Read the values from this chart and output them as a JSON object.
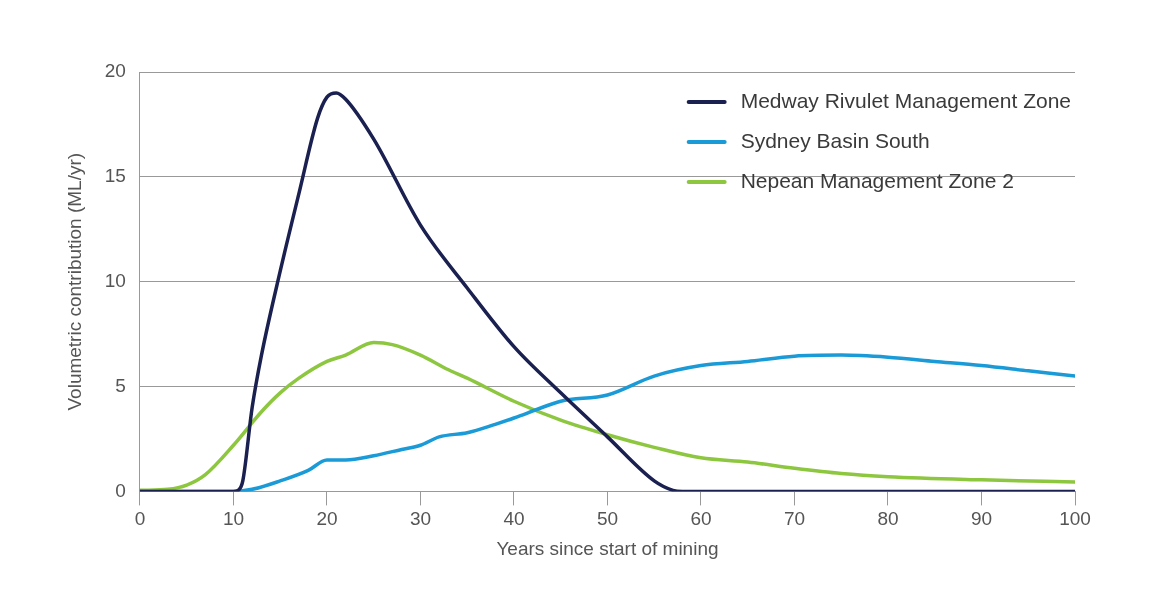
{
  "chart_data": {
    "type": "line",
    "xlabel": "Years since start of mining",
    "ylabel": "Volumetric contribution (ML/yr)",
    "xlim": [
      0,
      100
    ],
    "xticks": [
      0,
      10,
      20,
      30,
      40,
      50,
      60,
      70,
      80,
      90,
      100
    ],
    "ylim": [
      0,
      20
    ],
    "yticks": [
      0,
      5,
      10,
      15,
      20
    ],
    "grid": "y",
    "legend": "top right",
    "marker": "none",
    "line_style": "solid",
    "series": [
      {
        "name": "Medway Rivulet Management Zone",
        "color": "#1a2050",
        "x": [
          0,
          5,
          10,
          10.5,
          11,
          12,
          13,
          15,
          17,
          19,
          20,
          21,
          22,
          25,
          30,
          35,
          40,
          45,
          50,
          55,
          57,
          58,
          60,
          70,
          80,
          90,
          100
        ],
        "values": [
          0,
          0,
          0,
          0.05,
          0.5,
          4,
          6.5,
          10.5,
          14.2,
          17.8,
          18.8,
          19,
          18.7,
          16.8,
          12.7,
          9.7,
          6.9,
          4.7,
          2.6,
          0.5,
          0.05,
          0,
          0,
          0,
          0,
          0,
          0
        ]
      },
      {
        "name": "Sydney Basin South",
        "color": "#1a9ad6",
        "x": [
          0,
          5,
          10,
          12,
          15,
          18,
          20,
          22,
          25,
          28,
          30,
          32,
          35,
          38,
          40,
          43,
          45,
          50,
          55,
          60,
          65,
          70,
          75,
          80,
          85,
          90,
          95,
          100
        ],
        "values": [
          0,
          0,
          0,
          0.1,
          0.5,
          1,
          1.5,
          1.5,
          1.7,
          2,
          2.2,
          2.6,
          2.8,
          3.2,
          3.5,
          4,
          4.3,
          4.6,
          5.5,
          6,
          6.2,
          6.45,
          6.5,
          6.4,
          6.2,
          6,
          5.75,
          5.5
        ]
      },
      {
        "name": "Nepean Management Zone 2",
        "color": "#8dc63f",
        "x": [
          0,
          3,
          5,
          7,
          10,
          13,
          15,
          17,
          20,
          22,
          25,
          27,
          30,
          33,
          35,
          40,
          45,
          50,
          55,
          60,
          65,
          70,
          75,
          80,
          90,
          100
        ],
        "values": [
          0.05,
          0.1,
          0.3,
          0.8,
          2.2,
          3.8,
          4.7,
          5.4,
          6.2,
          6.5,
          7.1,
          7,
          6.5,
          5.8,
          5.4,
          4.3,
          3.4,
          2.7,
          2.1,
          1.6,
          1.4,
          1.1,
          0.85,
          0.7,
          0.55,
          0.45
        ]
      }
    ]
  }
}
